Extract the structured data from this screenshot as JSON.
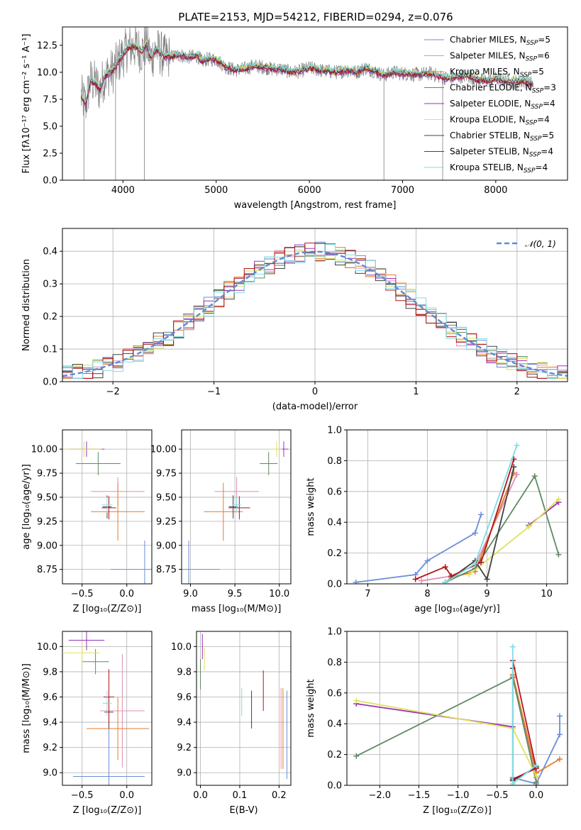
{
  "title": "PLATE=2153, MJD=54212, FIBERID=0294, z=0.076",
  "chart_data": [
    {
      "type": "line",
      "id": "spectrum",
      "xlabel": "wavelength [Angstrom, rest frame]",
      "ylabel": "Flux [fλ10⁻¹⁷ erg cm⁻² s⁻¹ A⁻¹]",
      "xlim": [
        3350,
        8770
      ],
      "ylim": [
        0,
        14.2
      ],
      "xticks": [
        4000,
        5000,
        6000,
        7000,
        8000
      ],
      "yticks": [
        0.0,
        2.5,
        5.0,
        7.5,
        10.0,
        12.5
      ],
      "legend_position": "top-right",
      "data_color": "#7f7f7f",
      "data_points": [
        [
          3550,
          7.8
        ],
        [
          3600,
          7.0
        ],
        [
          3650,
          9.2
        ],
        [
          3700,
          9.0
        ],
        [
          3750,
          8.4
        ],
        [
          3800,
          9.6
        ],
        [
          3850,
          9.9
        ],
        [
          3900,
          10.2
        ],
        [
          3950,
          11.0
        ],
        [
          4000,
          11.6
        ],
        [
          4050,
          12.2
        ],
        [
          4100,
          12.4
        ],
        [
          4150,
          12.3
        ],
        [
          4200,
          11.9
        ],
        [
          4250,
          12.6
        ],
        [
          4300,
          11.3
        ],
        [
          4350,
          12.1
        ],
        [
          4400,
          11.8
        ],
        [
          4450,
          11.4
        ],
        [
          4500,
          11.4
        ],
        [
          4600,
          11.6
        ],
        [
          4700,
          11.4
        ],
        [
          4800,
          11.5
        ],
        [
          4850,
          11.0
        ],
        [
          4900,
          11.2
        ],
        [
          5000,
          11.2
        ],
        [
          5100,
          10.5
        ],
        [
          5200,
          10.2
        ],
        [
          5300,
          10.3
        ],
        [
          5400,
          10.6
        ],
        [
          5500,
          10.5
        ],
        [
          5600,
          10.3
        ],
        [
          5700,
          10.3
        ],
        [
          5800,
          10.0
        ],
        [
          5900,
          10.1
        ],
        [
          6000,
          10.4
        ],
        [
          6100,
          10.2
        ],
        [
          6200,
          10.1
        ],
        [
          6300,
          10.0
        ],
        [
          6400,
          10.2
        ],
        [
          6500,
          10.0
        ],
        [
          6600,
          10.4
        ],
        [
          6700,
          10.1
        ],
        [
          6800,
          9.7
        ],
        [
          6900,
          10.0
        ],
        [
          7000,
          9.9
        ],
        [
          7100,
          9.8
        ],
        [
          7200,
          9.8
        ],
        [
          7300,
          9.9
        ],
        [
          7400,
          9.6
        ],
        [
          7500,
          9.4
        ],
        [
          7600,
          9.6
        ],
        [
          7700,
          9.7
        ],
        [
          7800,
          9.3
        ],
        [
          7900,
          9.2
        ],
        [
          8000,
          9.4
        ],
        [
          8100,
          9.2
        ],
        [
          8200,
          9.1
        ],
        [
          8300,
          9.2
        ],
        [
          8400,
          8.9
        ]
      ],
      "series": [
        {
          "name": "Chabrier MILES, N_SSP=5",
          "color": "#6a8fd6",
          "offset": -0.05
        },
        {
          "name": "Salpeter MILES, N_SSP=6",
          "color": "#e08fb8",
          "offset": 0.05
        },
        {
          "name": "Kroupa MILES, N_SSP=5",
          "color": "#e47b27",
          "offset": 0.0
        },
        {
          "name": "Chabrier ELODIE, N_SSP=3",
          "color": "#5e8a63",
          "offset": 0.1
        },
        {
          "name": "Salpeter ELODIE, N_SSP=4",
          "color": "#9932b6",
          "offset": -0.1
        },
        {
          "name": "Kroupa ELODIE, N_SSP=4",
          "color": "#dfe25b",
          "offset": 0.15
        },
        {
          "name": "Chabrier STELIB, N_SSP=5",
          "color": "#404040",
          "offset": 0.02
        },
        {
          "name": "Salpeter STELIB, N_SSP=4",
          "color": "#b3141a",
          "offset": -0.03
        },
        {
          "name": "Kroupa STELIB, N_SSP=4",
          "color": "#7fdde8",
          "offset": 0.2
        }
      ]
    },
    {
      "type": "line",
      "id": "residuals",
      "xlabel": "(data-model)/error",
      "ylabel": "Normed distribution",
      "xlim": [
        -2.5,
        2.5
      ],
      "ylim": [
        0,
        0.47
      ],
      "xticks": [
        -2,
        -1,
        0,
        1,
        2
      ],
      "yticks": [
        0.0,
        0.1,
        0.2,
        0.3,
        0.4
      ],
      "legend": "𝒩(0, 1)",
      "legend_position": "top-right",
      "gaussian_color": "#5b8ad8",
      "hist_bins": [
        -2.5,
        2.5,
        0.1
      ]
    },
    {
      "type": "scatter",
      "id": "age-vs-Z",
      "xlabel": "Z [log₁₀(Z/Z⊙)]",
      "ylabel": "age  [log₁₀(age/yr)]",
      "xlim": [
        -0.72,
        0.28
      ],
      "ylim": [
        8.6,
        10.2
      ],
      "xticks": [
        -0.5,
        0.0
      ],
      "yticks": [
        8.75,
        9.0,
        9.25,
        9.5,
        9.75,
        10.0
      ],
      "points": [
        {
          "x": 0.2,
          "y": 8.75,
          "xerr": 0.38,
          "yerr": 0.3,
          "color": "#6a8fd6"
        },
        {
          "x": -0.1,
          "y": 9.56,
          "xerr": 0.3,
          "yerr": 0.15,
          "color": "#e08fb8"
        },
        {
          "x": -0.1,
          "y": 9.35,
          "xerr": 0.3,
          "yerr": 0.3,
          "color": "#e47b27"
        },
        {
          "x": -0.32,
          "y": 9.85,
          "xerr": 0.25,
          "yerr": 0.12,
          "color": "#5e8a63"
        },
        {
          "x": -0.45,
          "y": 10.0,
          "xerr": 0.2,
          "yerr": 0.08,
          "color": "#9932b6"
        },
        {
          "x": -0.48,
          "y": 10.0,
          "xerr": 0.2,
          "yerr": 0.08,
          "color": "#dfe25b"
        },
        {
          "x": -0.22,
          "y": 9.4,
          "xerr": 0.05,
          "yerr": 0.12,
          "color": "#404040"
        },
        {
          "x": -0.2,
          "y": 9.39,
          "xerr": 0.08,
          "yerr": 0.12,
          "color": "#b3141a"
        },
        {
          "x": -0.22,
          "y": 9.42,
          "xerr": 0.06,
          "yerr": 0.08,
          "color": "#7fdde8"
        }
      ]
    },
    {
      "type": "scatter",
      "id": "age-vs-mass",
      "xlabel": "mass [log₁₀(M/M⊙)]",
      "ylabel": "",
      "xlim": [
        8.9,
        10.13
      ],
      "ylim": [
        8.6,
        10.2
      ],
      "xticks": [
        9.0,
        9.5,
        10.0
      ],
      "yticks": [
        8.75,
        9.0,
        9.25,
        9.5,
        9.75,
        10.0
      ],
      "points": [
        {
          "x": 8.98,
          "y": 8.75,
          "xerr": 0.35,
          "yerr": 0.3,
          "color": "#6a8fd6"
        },
        {
          "x": 9.52,
          "y": 9.56,
          "xerr": 0.25,
          "yerr": 0.15,
          "color": "#e08fb8"
        },
        {
          "x": 9.37,
          "y": 9.35,
          "xerr": 0.22,
          "yerr": 0.3,
          "color": "#e47b27"
        },
        {
          "x": 9.88,
          "y": 9.85,
          "xerr": 0.1,
          "yerr": 0.12,
          "color": "#5e8a63"
        },
        {
          "x": 10.05,
          "y": 10.0,
          "xerr": 0.05,
          "yerr": 0.08,
          "color": "#9932b6"
        },
        {
          "x": 9.97,
          "y": 10.0,
          "xerr": 0.06,
          "yerr": 0.08,
          "color": "#dfe25b"
        },
        {
          "x": 9.48,
          "y": 9.4,
          "xerr": 0.05,
          "yerr": 0.12,
          "color": "#404040"
        },
        {
          "x": 9.55,
          "y": 9.39,
          "xerr": 0.12,
          "yerr": 0.12,
          "color": "#b3141a"
        },
        {
          "x": 9.52,
          "y": 9.42,
          "xerr": 0.05,
          "yerr": 0.08,
          "color": "#7fdde8"
        }
      ]
    },
    {
      "type": "line",
      "id": "massweight-vs-age",
      "xlabel": "age  [log₁₀(age/yr)]",
      "ylabel": "mass weight",
      "xlim": [
        6.65,
        10.35
      ],
      "ylim": [
        0,
        1.0
      ],
      "xticks": [
        7,
        8,
        9,
        10
      ],
      "yticks": [
        0.0,
        0.2,
        0.4,
        0.6,
        0.8,
        1.0
      ],
      "series": [
        {
          "color": "#6a8fd6",
          "x": [
            6.8,
            7.8,
            8.0,
            8.8,
            8.9
          ],
          "y": [
            0.01,
            0.06,
            0.15,
            0.33,
            0.45
          ]
        },
        {
          "color": "#e08fb8",
          "x": [
            7.9,
            8.4,
            8.8,
            9.5
          ],
          "y": [
            0.02,
            0.05,
            0.12,
            0.71
          ]
        },
        {
          "color": "#e47b27",
          "x": [
            8.4,
            8.8,
            9.45
          ],
          "y": [
            0.04,
            0.08,
            0.72
          ]
        },
        {
          "color": "#5e8a63",
          "x": [
            8.3,
            8.8,
            9.8,
            10.2
          ],
          "y": [
            0.01,
            0.1,
            0.7,
            0.19
          ]
        },
        {
          "color": "#9932b6",
          "x": [
            9.7,
            10.2
          ],
          "y": [
            0.38,
            0.53
          ]
        },
        {
          "color": "#dfe25b",
          "x": [
            8.7,
            9.7,
            10.2
          ],
          "y": [
            0.06,
            0.37,
            0.55
          ]
        },
        {
          "color": "#404040",
          "x": [
            8.3,
            8.8,
            9.0,
            9.45
          ],
          "y": [
            0.01,
            0.15,
            0.03,
            0.76
          ]
        },
        {
          "color": "#b3141a",
          "x": [
            7.8,
            8.3,
            8.4,
            8.9,
            9.45
          ],
          "y": [
            0.03,
            0.11,
            0.05,
            0.14,
            0.81
          ]
        },
        {
          "color": "#7fdde8",
          "x": [
            8.3,
            8.8,
            9.5
          ],
          "y": [
            0.01,
            0.13,
            0.9
          ]
        }
      ]
    },
    {
      "type": "scatter",
      "id": "mass-vs-Z",
      "xlabel": "Z [log₁₀(Z/Z⊙)]",
      "ylabel": "mass [log₁₀(M/M⊙)]",
      "xlim": [
        -0.72,
        0.28
      ],
      "ylim": [
        8.9,
        10.12
      ],
      "xticks": [
        -0.5,
        0.0
      ],
      "yticks": [
        9.0,
        9.2,
        9.4,
        9.6,
        9.8,
        10.0
      ],
      "points": [
        {
          "x": -0.2,
          "y": 8.97,
          "xerr": 0.4,
          "yerr": 0.4,
          "color": "#6a8fd6"
        },
        {
          "x": -0.05,
          "y": 9.49,
          "xerr": 0.25,
          "yerr": 0.45,
          "color": "#e08fb8"
        },
        {
          "x": -0.1,
          "y": 9.35,
          "xerr": 0.35,
          "yerr": 0.25,
          "color": "#e47b27"
        },
        {
          "x": -0.35,
          "y": 9.88,
          "xerr": 0.15,
          "yerr": 0.1,
          "color": "#5e8a63"
        },
        {
          "x": -0.45,
          "y": 10.05,
          "xerr": 0.2,
          "yerr": 0.08,
          "color": "#9932b6"
        },
        {
          "x": -0.5,
          "y": 9.95,
          "xerr": 0.2,
          "yerr": 0.08,
          "color": "#dfe25b"
        },
        {
          "x": -0.2,
          "y": 9.48,
          "xerr": 0.05,
          "yerr": 0.13,
          "color": "#404040"
        },
        {
          "x": -0.2,
          "y": 9.6,
          "xerr": 0.06,
          "yerr": 0.22,
          "color": "#b3141a"
        },
        {
          "x": -0.22,
          "y": 9.55,
          "xerr": 0.05,
          "yerr": 0.1,
          "color": "#7fdde8"
        }
      ]
    },
    {
      "type": "scatter",
      "id": "mass-vs-EBV",
      "xlabel": "E(B-V)",
      "ylabel": "",
      "xlim": [
        -0.01,
        0.23
      ],
      "ylim": [
        8.9,
        10.12
      ],
      "xticks": [
        0.0,
        0.1,
        0.2
      ],
      "yticks": [
        9.0,
        9.2,
        9.4,
        9.6,
        9.8,
        10.0
      ],
      "points": [
        {
          "x": 0.22,
          "y": 9.3,
          "xerr": 0,
          "yerr": 0.35,
          "color": "#6a8fd6"
        },
        {
          "x": 0.205,
          "y": 9.35,
          "xerr": 0,
          "yerr": 0.32,
          "color": "#e08fb8"
        },
        {
          "x": 0.21,
          "y": 9.35,
          "xerr": 0,
          "yerr": 0.32,
          "color": "#e47b27"
        },
        {
          "x": 0.0,
          "y": 9.78,
          "xerr": 0,
          "yerr": 0.12,
          "color": "#5e8a63"
        },
        {
          "x": 0.005,
          "y": 10.0,
          "xerr": 0,
          "yerr": 0.1,
          "color": "#9932b6"
        },
        {
          "x": 0.01,
          "y": 9.9,
          "xerr": 0,
          "yerr": 0.09,
          "color": "#dfe25b"
        },
        {
          "x": 0.13,
          "y": 9.5,
          "xerr": 0,
          "yerr": 0.15,
          "color": "#404040"
        },
        {
          "x": 0.16,
          "y": 9.65,
          "xerr": 0,
          "yerr": 0.16,
          "color": "#b3141a"
        },
        {
          "x": 0.105,
          "y": 9.56,
          "xerr": 0,
          "yerr": 0.11,
          "color": "#7fdde8"
        }
      ]
    },
    {
      "type": "line",
      "id": "massweight-vs-Z",
      "xlabel": "Z [log₁₀(Z/Z⊙)]",
      "ylabel": "mass weight",
      "xlim": [
        -2.42,
        0.4
      ],
      "ylim": [
        0,
        1.0
      ],
      "xticks": [
        -2.0,
        -1.5,
        -1.0,
        -0.5,
        0.0
      ],
      "yticks": [
        0.0,
        0.2,
        0.4,
        0.6,
        0.8,
        1.0
      ],
      "series": [
        {
          "color": "#6a8fd6",
          "x": [
            -0.3,
            0.0,
            0.3,
            0.3
          ],
          "y": [
            0.05,
            0.01,
            0.33,
            0.45
          ]
        },
        {
          "color": "#e08fb8",
          "x": [
            -0.3,
            0.0,
            0.0
          ],
          "y": [
            0.71,
            0.05,
            0.0
          ]
        },
        {
          "color": "#e47b27",
          "x": [
            -0.3,
            0.0,
            0.3
          ],
          "y": [
            0.72,
            0.08,
            0.17
          ]
        },
        {
          "color": "#5e8a63",
          "x": [
            -2.3,
            -0.3,
            0.0
          ],
          "y": [
            0.19,
            0.7,
            0.02
          ]
        },
        {
          "color": "#9932b6",
          "x": [
            -2.3,
            -0.3
          ],
          "y": [
            0.53,
            0.38
          ]
        },
        {
          "color": "#dfe25b",
          "x": [
            -2.3,
            -0.3,
            0.0
          ],
          "y": [
            0.55,
            0.37,
            0.06
          ]
        },
        {
          "color": "#404040",
          "x": [
            -0.3,
            -0.3,
            0.0
          ],
          "y": [
            0.76,
            0.03,
            0.12
          ]
        },
        {
          "color": "#b3141a",
          "x": [
            -0.3,
            0.0,
            -0.3
          ],
          "y": [
            0.81,
            0.11,
            0.04
          ]
        },
        {
          "color": "#7fdde8",
          "x": [
            -0.3,
            -0.3,
            0.0
          ],
          "y": [
            0.9,
            0.01,
            0.13
          ]
        }
      ]
    }
  ]
}
